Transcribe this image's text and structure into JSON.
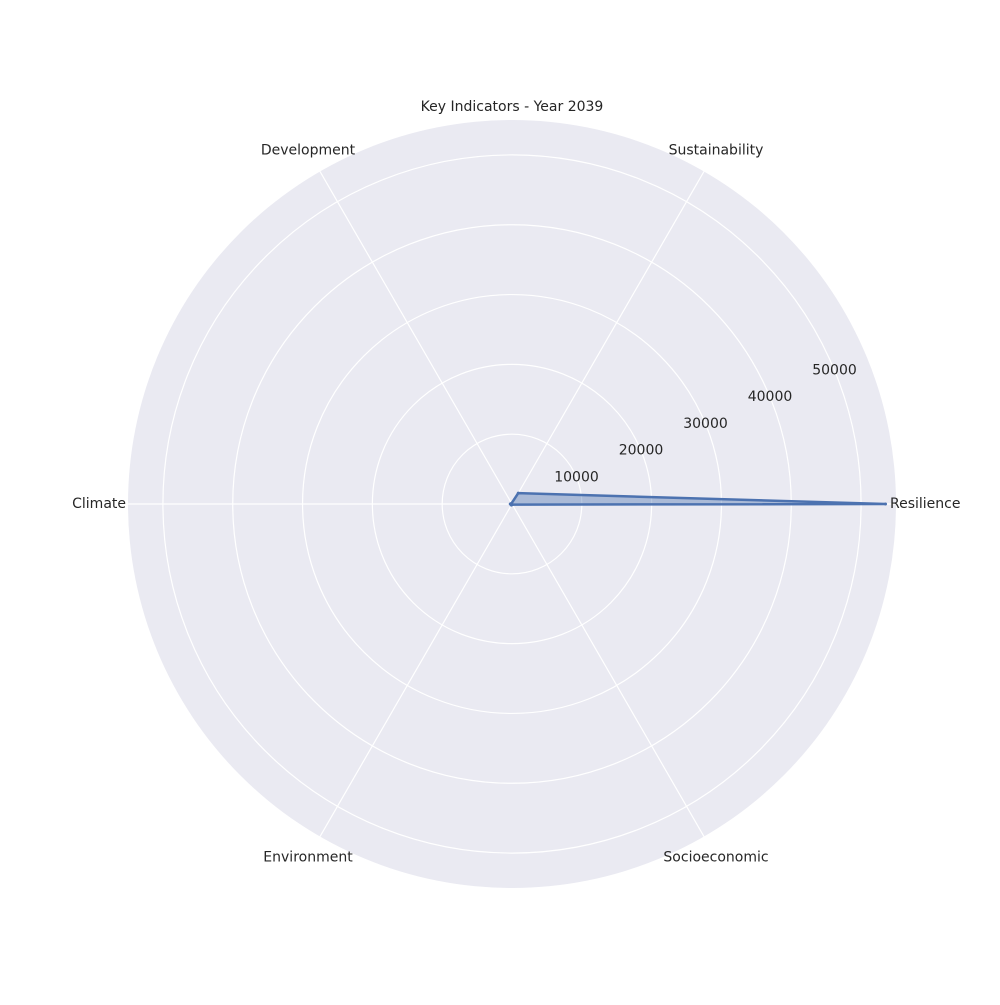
{
  "chart_data": {
    "type": "radar",
    "title": "Key Indicators - Year 2039",
    "categories": [
      "Resilience",
      "Sustainability",
      "Development",
      "Climate",
      "Environment",
      "Socioeconomic"
    ],
    "series": [
      {
        "values": [
          53500,
          1800,
          120,
          250,
          180,
          100
        ]
      }
    ],
    "radial_ticks": [
      10000,
      20000,
      30000,
      40000,
      50000
    ],
    "rlim": [
      0,
      55000
    ],
    "grid": true,
    "colors": {
      "background": "#eaeaf2",
      "grid": "#ffffff",
      "line": "#4c72b0",
      "fill": "#4c72b0"
    }
  }
}
